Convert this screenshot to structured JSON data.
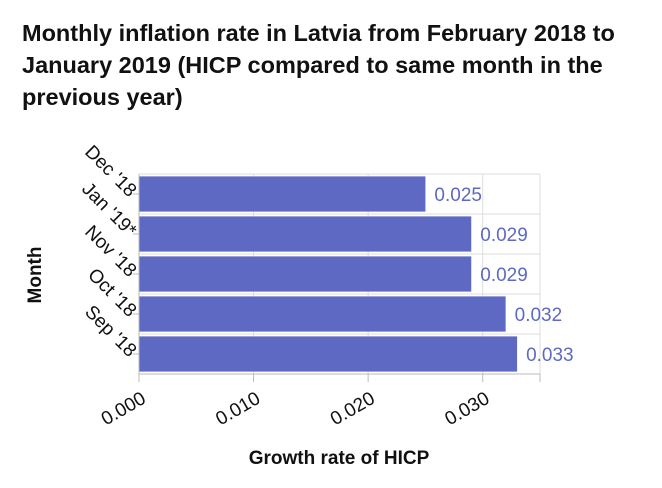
{
  "chart_data": {
    "type": "bar",
    "orientation": "horizontal",
    "title": "Monthly inflation rate in Latvia from February 2018 to January 2019 (HICP compared to same month in the previous year)",
    "xlabel": "Growth rate of HICP",
    "ylabel": "Month",
    "categories": [
      "Dec '18",
      "Jan '19*",
      "Nov '18",
      "Oct '18",
      "Sep '18"
    ],
    "values": [
      0.025,
      0.029,
      0.029,
      0.032,
      0.033
    ],
    "data_labels": [
      "0.025",
      "0.029",
      "0.029",
      "0.032",
      "0.033"
    ],
    "xlim": [
      0,
      0.035
    ],
    "x_ticks": [
      0,
      0.01,
      0.02,
      0.03
    ],
    "x_tick_labels": [
      "0.000",
      "0.010",
      "0.020",
      "0.030"
    ],
    "grid": true,
    "colors": {
      "bar": "#5e69c3",
      "label": "#5e69c3",
      "grid": "#dddddd",
      "axis": "#bbbbbb",
      "text": "#111111"
    }
  }
}
